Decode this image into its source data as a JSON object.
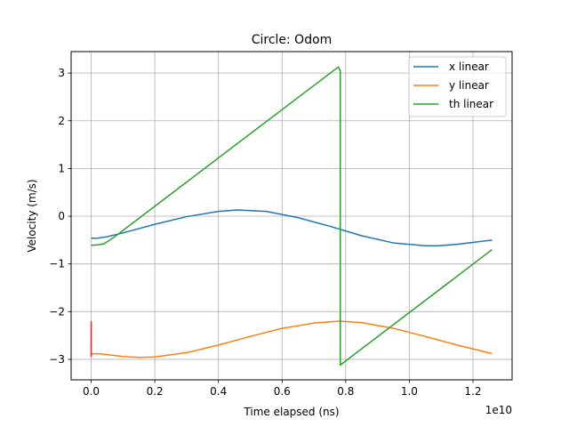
{
  "chart_data": {
    "type": "line",
    "title": "Circle: Odom",
    "xlabel": "Time elapsed (ns)",
    "ylabel": "Velocity (m/s)",
    "x_offset_text": "1e10",
    "xlim": [
      -0.063,
      1.323
    ],
    "ylim": [
      -3.43,
      3.45
    ],
    "x_ticks": [
      0.0,
      0.2,
      0.4,
      0.6,
      0.8,
      1.0,
      1.2
    ],
    "x_tick_labels": [
      "0.0",
      "0.2",
      "0.4",
      "0.6",
      "0.8",
      "1.0",
      "1.2"
    ],
    "y_ticks": [
      3,
      2,
      1,
      0,
      -1,
      -2,
      -3
    ],
    "y_tick_labels": [
      "3",
      "2",
      "1",
      "0",
      "−1",
      "−2",
      "−3"
    ],
    "grid": true,
    "legend_position": "top-right",
    "series": [
      {
        "name": "x linear",
        "color": "#1f77b4",
        "x": [
          0.0,
          0.02,
          0.05,
          0.1,
          0.2,
          0.3,
          0.4,
          0.46,
          0.55,
          0.65,
          0.75,
          0.85,
          0.95,
          1.05,
          1.09,
          1.15,
          1.26
        ],
        "y": [
          -0.46,
          -0.46,
          -0.43,
          -0.35,
          -0.17,
          -0.01,
          0.1,
          0.13,
          0.1,
          -0.03,
          -0.21,
          -0.41,
          -0.56,
          -0.62,
          -0.62,
          -0.59,
          -0.5
        ]
      },
      {
        "name": "y linear",
        "color": "#ff7f0e",
        "x": [
          0.0,
          0.02,
          0.05,
          0.1,
          0.15,
          0.2,
          0.3,
          0.4,
          0.5,
          0.6,
          0.7,
          0.78,
          0.85,
          0.95,
          1.05,
          1.15,
          1.26
        ],
        "y": [
          -2.89,
          -2.88,
          -2.9,
          -2.94,
          -2.96,
          -2.95,
          -2.86,
          -2.7,
          -2.52,
          -2.35,
          -2.24,
          -2.2,
          -2.23,
          -2.35,
          -2.52,
          -2.7,
          -2.88
        ]
      },
      {
        "name": "th linear",
        "color": "#2ca02c",
        "x": [
          0.0,
          0.02,
          0.04,
          0.07,
          0.777,
          0.777,
          0.783,
          0.783,
          1.26
        ],
        "y": [
          -0.61,
          -0.6,
          -0.58,
          -0.45,
          3.13,
          3.13,
          3.05,
          -3.12,
          -0.7
        ]
      },
      {
        "name": "",
        "color": "#d62728",
        "x": [
          0.0,
          0.0
        ],
        "y": [
          -2.2,
          -2.95
        ]
      }
    ]
  }
}
